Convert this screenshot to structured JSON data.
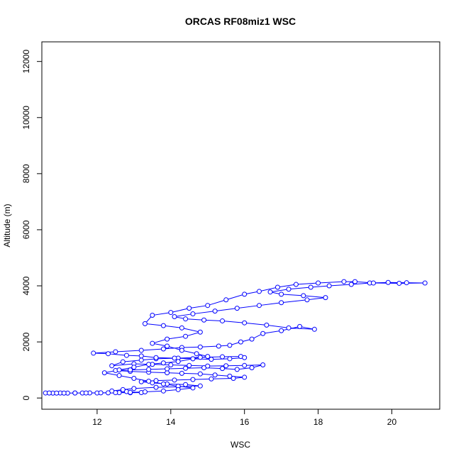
{
  "chart_data": {
    "type": "scatter",
    "title": "ORCAS RF08miz1 WSC",
    "xlabel": "WSC",
    "ylabel": "Altitude (m)",
    "xlim": [
      10.5,
      21.3
    ],
    "ylim": [
      -400,
      12700
    ],
    "x_ticks": [
      12,
      14,
      16,
      18,
      20
    ],
    "y_ticks": [
      0,
      2000,
      4000,
      6000,
      8000,
      10000,
      12000
    ],
    "grid": false,
    "legend": "none",
    "point_style": "open-circle",
    "connect_points": true,
    "color": "#0000ff",
    "series": [
      {
        "points": [
          [
            10.6,
            180
          ],
          [
            10.8,
            175
          ],
          [
            11.0,
            178
          ],
          [
            11.2,
            176
          ],
          [
            11.4,
            180
          ],
          [
            11.6,
            178
          ],
          [
            11.8,
            182
          ],
          [
            12.0,
            180
          ],
          [
            12.3,
            185
          ],
          [
            12.6,
            190
          ],
          [
            12.9,
            188
          ],
          [
            13.2,
            195
          ],
          [
            12.8,
            230
          ],
          [
            12.4,
            250
          ],
          [
            12.7,
            300
          ],
          [
            13.0,
            340
          ],
          [
            13.6,
            380
          ],
          [
            14.2,
            400
          ],
          [
            14.8,
            430
          ],
          [
            14.4,
            480
          ],
          [
            13.9,
            500
          ],
          [
            13.5,
            540
          ],
          [
            13.2,
            580
          ],
          [
            13.6,
            620
          ],
          [
            14.1,
            640
          ],
          [
            14.6,
            660
          ],
          [
            15.1,
            680
          ],
          [
            15.7,
            700
          ],
          [
            16.0,
            740
          ],
          [
            15.6,
            780
          ],
          [
            15.2,
            820
          ],
          [
            14.8,
            860
          ],
          [
            14.3,
            880
          ],
          [
            13.9,
            900
          ],
          [
            13.4,
            920
          ],
          [
            12.9,
            950
          ],
          [
            12.5,
            980
          ],
          [
            12.9,
            1000
          ],
          [
            13.4,
            1020
          ],
          [
            13.9,
            1040
          ],
          [
            14.4,
            1060
          ],
          [
            14.9,
            1080
          ],
          [
            15.4,
            1050
          ],
          [
            15.8,
            1020
          ],
          [
            16.2,
            1080
          ],
          [
            16.5,
            1180
          ],
          [
            16.0,
            1160
          ],
          [
            15.5,
            1150
          ],
          [
            15.0,
            1140
          ],
          [
            14.5,
            1160
          ],
          [
            14.0,
            1180
          ],
          [
            13.5,
            1200
          ],
          [
            13.0,
            1220
          ],
          [
            12.4,
            1150
          ],
          [
            12.7,
            1290
          ],
          [
            13.2,
            1350
          ],
          [
            13.6,
            1400
          ],
          [
            14.2,
            1420
          ],
          [
            14.8,
            1450
          ],
          [
            15.4,
            1470
          ],
          [
            15.9,
            1480
          ],
          [
            16.0,
            1440
          ],
          [
            15.6,
            1400
          ],
          [
            15.1,
            1380
          ],
          [
            14.6,
            1400
          ],
          [
            14.1,
            1420
          ],
          [
            13.6,
            1440
          ],
          [
            13.2,
            1500
          ],
          [
            12.8,
            1520
          ],
          [
            12.3,
            1580
          ],
          [
            11.9,
            1600
          ],
          [
            12.5,
            1650
          ],
          [
            13.2,
            1700
          ],
          [
            13.8,
            1750
          ],
          [
            14.3,
            1800
          ],
          [
            14.8,
            1820
          ],
          [
            15.3,
            1850
          ],
          [
            15.6,
            1880
          ],
          [
            15.9,
            2000
          ],
          [
            16.2,
            2100
          ],
          [
            16.5,
            2300
          ],
          [
            17.0,
            2400
          ],
          [
            17.5,
            2550
          ],
          [
            17.9,
            2450
          ],
          [
            17.2,
            2500
          ],
          [
            16.6,
            2600
          ],
          [
            16.0,
            2680
          ],
          [
            15.4,
            2750
          ],
          [
            14.9,
            2780
          ],
          [
            14.4,
            2820
          ],
          [
            14.1,
            2900
          ],
          [
            14.6,
            3000
          ],
          [
            15.2,
            3100
          ],
          [
            15.8,
            3200
          ],
          [
            16.4,
            3300
          ],
          [
            17.0,
            3400
          ],
          [
            17.7,
            3500
          ],
          [
            18.2,
            3580
          ],
          [
            17.6,
            3650
          ],
          [
            17.0,
            3700
          ],
          [
            16.7,
            3780
          ],
          [
            17.2,
            3880
          ],
          [
            17.8,
            3950
          ],
          [
            18.3,
            4000
          ],
          [
            18.9,
            4050
          ],
          [
            19.4,
            4100
          ],
          [
            19.9,
            4120
          ],
          [
            20.4,
            4110
          ],
          [
            20.9,
            4100
          ],
          [
            20.2,
            4090
          ],
          [
            19.5,
            4100
          ],
          [
            19.0,
            4150
          ],
          [
            18.7,
            4150
          ],
          [
            18.0,
            4100
          ],
          [
            17.4,
            4050
          ],
          [
            16.9,
            3950
          ],
          [
            16.4,
            3800
          ],
          [
            16.0,
            3700
          ],
          [
            15.5,
            3500
          ],
          [
            15.0,
            3300
          ],
          [
            14.5,
            3200
          ],
          [
            14.0,
            3050
          ],
          [
            13.5,
            2950
          ],
          [
            13.3,
            2650
          ],
          [
            13.8,
            2580
          ],
          [
            14.3,
            2500
          ],
          [
            14.8,
            2350
          ],
          [
            14.4,
            2200
          ],
          [
            13.9,
            2100
          ],
          [
            13.5,
            1950
          ],
          [
            13.9,
            1850
          ],
          [
            14.3,
            1700
          ],
          [
            14.7,
            1580
          ],
          [
            15.0,
            1480
          ],
          [
            14.6,
            1400
          ],
          [
            14.2,
            1300
          ],
          [
            13.8,
            1250
          ],
          [
            13.4,
            1200
          ],
          [
            13.0,
            1100
          ],
          [
            12.6,
            1000
          ],
          [
            12.2,
            900
          ],
          [
            12.6,
            800
          ],
          [
            13.0,
            700
          ],
          [
            13.4,
            600
          ],
          [
            13.8,
            500
          ],
          [
            14.2,
            420
          ],
          [
            14.6,
            360
          ],
          [
            14.2,
            300
          ],
          [
            13.8,
            250
          ],
          [
            13.3,
            220
          ],
          [
            12.9,
            200
          ],
          [
            12.5,
            190
          ],
          [
            12.1,
            185
          ],
          [
            11.7,
            180
          ],
          [
            11.4,
            178
          ],
          [
            11.1,
            176
          ],
          [
            10.9,
            175
          ],
          [
            10.7,
            178
          ]
        ]
      }
    ]
  }
}
